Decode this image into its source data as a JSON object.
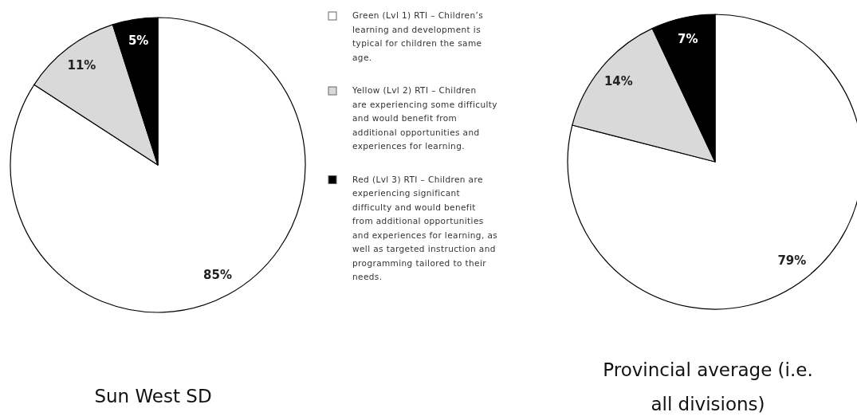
{
  "chart_data": [
    {
      "type": "pie",
      "title": "Sun West SD",
      "categories": [
        "Green (Lvl 1) RTI – Children’s learning and development is typical for children the same age.",
        "Yellow (Lvl 2) RTI – Children are experiencing some difficulty and would benefit from additional opportunities and experiences for learning.",
        "Red (Lvl 3) RTI – Children are experiencing significant difficulty and would benefit from additional opportunities and experiences for learning, as well as targeted instruction and programming tailored to their needs."
      ],
      "values": [
        85,
        11,
        5
      ],
      "colors": [
        "#ffffff",
        "#d9d9d9",
        "#000000"
      ],
      "value_labels": [
        "85%",
        "11%",
        "5%"
      ],
      "legend": "right"
    },
    {
      "type": "pie",
      "title": "Provincial average (i.e. all divisions)",
      "categories": [
        null,
        null,
        null
      ],
      "values": [
        79,
        14,
        7
      ],
      "colors": [
        "#ffffff",
        "#d9d9d9",
        "#000000"
      ],
      "value_labels": [
        "79%",
        "14%",
        "7%"
      ]
    }
  ]
}
